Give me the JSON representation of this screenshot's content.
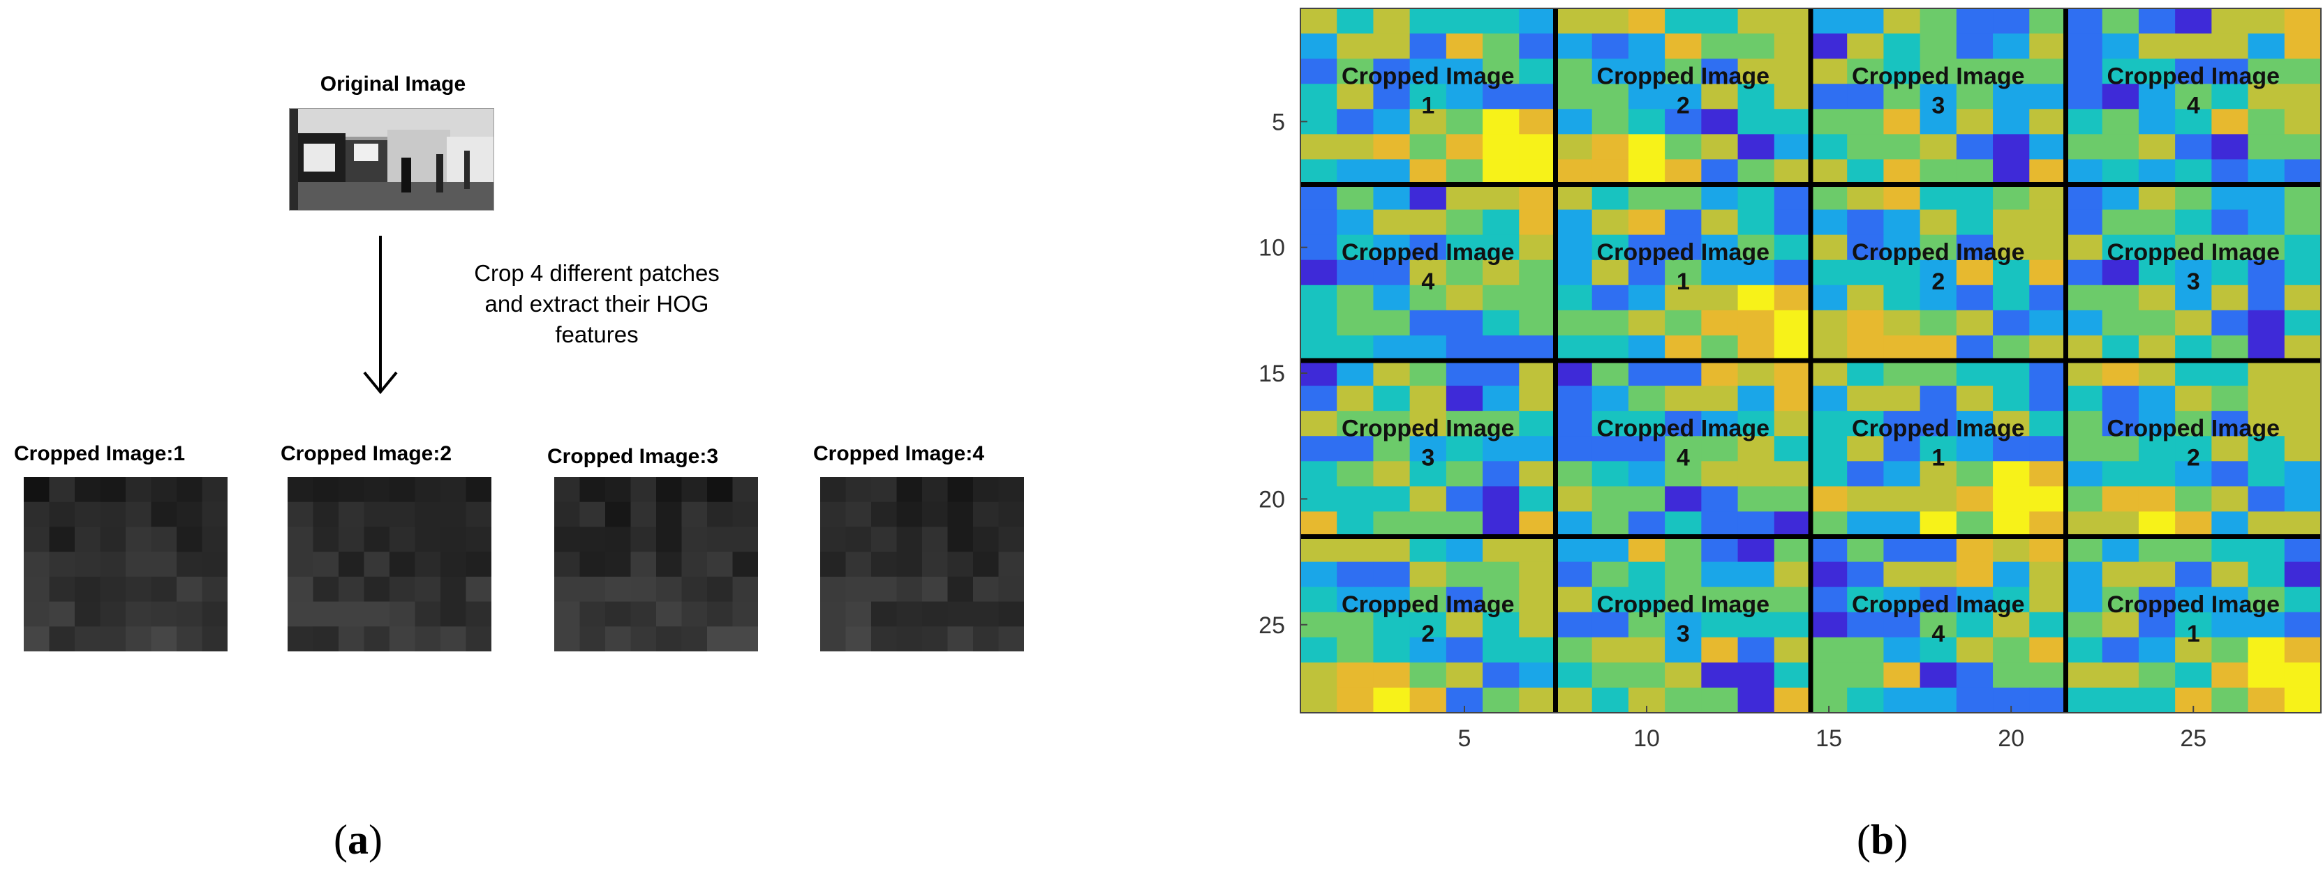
{
  "panel_a": {
    "original_title": "Original Image",
    "instruction_line1": "Crop 4 different patches",
    "instruction_line2": "and extract their HOG",
    "instruction_line3": "features",
    "crops": [
      {
        "label": "Cropped Image:1"
      },
      {
        "label": "Cropped Image:2"
      },
      {
        "label": "Cropped Image:3"
      },
      {
        "label": "Cropped Image:4"
      }
    ],
    "sub_label_letter": "a"
  },
  "panel_b": {
    "sub_label_letter": "b",
    "x_ticks": [
      "5",
      "10",
      "15",
      "20",
      "25"
    ],
    "y_ticks": [
      "5",
      "10",
      "15",
      "20",
      "25"
    ],
    "cell_title": "Cropped Image",
    "grid_numbers": [
      [
        "1",
        "2",
        "3",
        "4"
      ],
      [
        "4",
        "1",
        "2",
        "3"
      ],
      [
        "3",
        "4",
        "1",
        "2"
      ],
      [
        "2",
        "3",
        "4",
        "1"
      ]
    ],
    "colormap": [
      "#3e2ad8",
      "#2f6ff2",
      "#1aa6e8",
      "#18c3c0",
      "#6ccb6a",
      "#bfc23a",
      "#e7b92f",
      "#f7f219"
    ]
  }
}
